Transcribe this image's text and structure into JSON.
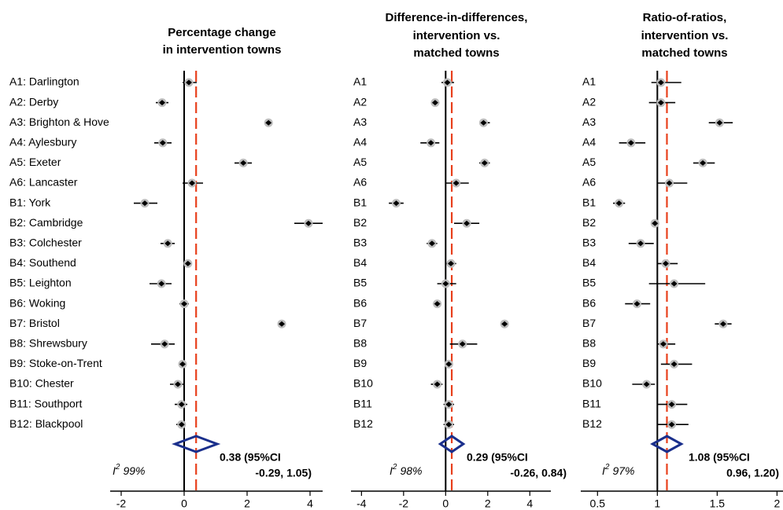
{
  "chart_data": [
    {
      "type": "forest",
      "title": [
        "Percentage change",
        "in intervention towns"
      ],
      "categories": [
        "A1: Darlington",
        "A2: Derby",
        "A3: Brighton & Hove",
        "A4: Aylesbury",
        "A5: Exeter",
        "A6: Lancaster",
        "B1: York",
        "B2: Cambridge",
        "B3: Colchester",
        "B4: Southend",
        "B5: Leighton",
        "B6: Woking",
        "B7: Bristol",
        "B8: Shrewsbury",
        "B9: Stoke-on-Trent",
        "B10: Chester",
        "B11: Southport",
        "B12: Blackpool"
      ],
      "values": [
        0.15,
        -0.7,
        2.68,
        -0.68,
        1.88,
        0.25,
        -1.25,
        3.95,
        -0.52,
        0.12,
        -0.72,
        0.0,
        3.1,
        -0.62,
        -0.05,
        -0.2,
        -0.08,
        -0.08
      ],
      "lower": [
        -0.05,
        -0.9,
        2.55,
        -0.95,
        1.6,
        -0.05,
        -1.6,
        3.5,
        -0.75,
        0.0,
        -1.1,
        -0.15,
        3.0,
        -1.05,
        -0.15,
        -0.45,
        -0.3,
        -0.25
      ],
      "upper": [
        0.4,
        -0.5,
        2.8,
        -0.4,
        2.15,
        0.6,
        -0.85,
        4.4,
        -0.3,
        0.25,
        -0.4,
        0.15,
        3.2,
        -0.3,
        0.05,
        0.0,
        0.1,
        0.05
      ],
      "reference": 0,
      "pooled": {
        "value": 0.38,
        "lower": -0.29,
        "upper": 1.05,
        "label": [
          "0.38 (95%CI",
          "-0.29, 1.05)"
        ]
      },
      "i2": {
        "symbol": "I",
        "sup": "2",
        "text": "99%"
      },
      "xlim": [
        -2.35,
        4.4
      ],
      "xticks": [
        -2,
        0,
        2,
        4
      ],
      "point_color": "#000000",
      "halo_color": "#bdbdbd",
      "pooled_color": "#1a2f8c",
      "pooled_line_color": "#e8401c"
    },
    {
      "type": "forest",
      "title": [
        "Difference-in-differences,",
        "intervention vs.",
        "matched towns"
      ],
      "categories": [
        "A1",
        "A2",
        "A3",
        "A4",
        "A5",
        "A6",
        "B1",
        "B2",
        "B3",
        "B4",
        "B5",
        "B6",
        "B7",
        "B8",
        "B9",
        "B10",
        "B11",
        "B12"
      ],
      "values": [
        0.08,
        -0.5,
        1.8,
        -0.7,
        1.85,
        0.5,
        -2.35,
        1.0,
        -0.65,
        0.25,
        0.0,
        -0.4,
        2.8,
        0.8,
        0.15,
        -0.4,
        0.15,
        0.15
      ],
      "lower": [
        -0.2,
        -0.7,
        1.6,
        -1.2,
        1.6,
        0.0,
        -2.7,
        0.4,
        -0.9,
        0.0,
        -0.4,
        -0.6,
        2.65,
        0.2,
        0.0,
        -0.7,
        -0.1,
        -0.1
      ],
      "upper": [
        0.4,
        -0.3,
        2.1,
        -0.3,
        2.1,
        1.1,
        -2.0,
        1.6,
        -0.4,
        0.5,
        0.5,
        -0.2,
        2.95,
        1.5,
        0.3,
        -0.15,
        0.4,
        0.4
      ],
      "reference": 0,
      "pooled": {
        "value": 0.29,
        "lower": -0.26,
        "upper": 0.84,
        "label": [
          "0.29 (95%CI",
          "-0.26, 0.84)"
        ]
      },
      "i2": {
        "symbol": "I",
        "sup": "2",
        "text": "98%"
      },
      "xlim": [
        -4.5,
        5.0
      ],
      "xticks": [
        -4,
        -2,
        0,
        2,
        4
      ],
      "point_color": "#000000",
      "halo_color": "#bdbdbd",
      "pooled_color": "#1a2f8c",
      "pooled_line_color": "#e8401c"
    },
    {
      "type": "forest",
      "title": [
        "Ratio-of-ratios,",
        "intervention vs.",
        "matched towns"
      ],
      "categories": [
        "A1",
        "A2",
        "A3",
        "A4",
        "A5",
        "A6",
        "B1",
        "B2",
        "B3",
        "B4",
        "B5",
        "B6",
        "B7",
        "B8",
        "B9",
        "B10",
        "B11",
        "B12"
      ],
      "values": [
        1.03,
        1.03,
        1.52,
        0.78,
        1.38,
        1.1,
        0.68,
        0.98,
        0.86,
        1.07,
        1.14,
        0.83,
        1.55,
        1.05,
        1.14,
        0.91,
        1.12,
        1.12
      ],
      "lower": [
        0.95,
        0.93,
        1.43,
        0.68,
        1.3,
        1.0,
        0.63,
        0.97,
        0.76,
        1.0,
        0.93,
        0.73,
        1.48,
        1.0,
        1.03,
        0.79,
        1.0,
        1.0
      ],
      "upper": [
        1.2,
        1.15,
        1.63,
        0.9,
        1.48,
        1.25,
        0.73,
        1.0,
        0.97,
        1.17,
        1.4,
        0.94,
        1.62,
        1.15,
        1.29,
        0.98,
        1.25,
        1.26
      ],
      "reference": 1,
      "pooled": {
        "value": 1.08,
        "lower": 0.96,
        "upper": 1.2,
        "label": [
          "1.08 (95%CI",
          "0.96, 1.20)"
        ]
      },
      "i2": {
        "symbol": "I",
        "sup": "2",
        "text": "97%"
      },
      "xlim": [
        0.36,
        2.05
      ],
      "xticks": [
        0.5,
        1,
        1.5,
        2
      ],
      "point_color": "#000000",
      "halo_color": "#bdbdbd",
      "pooled_color": "#1a2f8c",
      "pooled_line_color": "#e8401c"
    }
  ]
}
